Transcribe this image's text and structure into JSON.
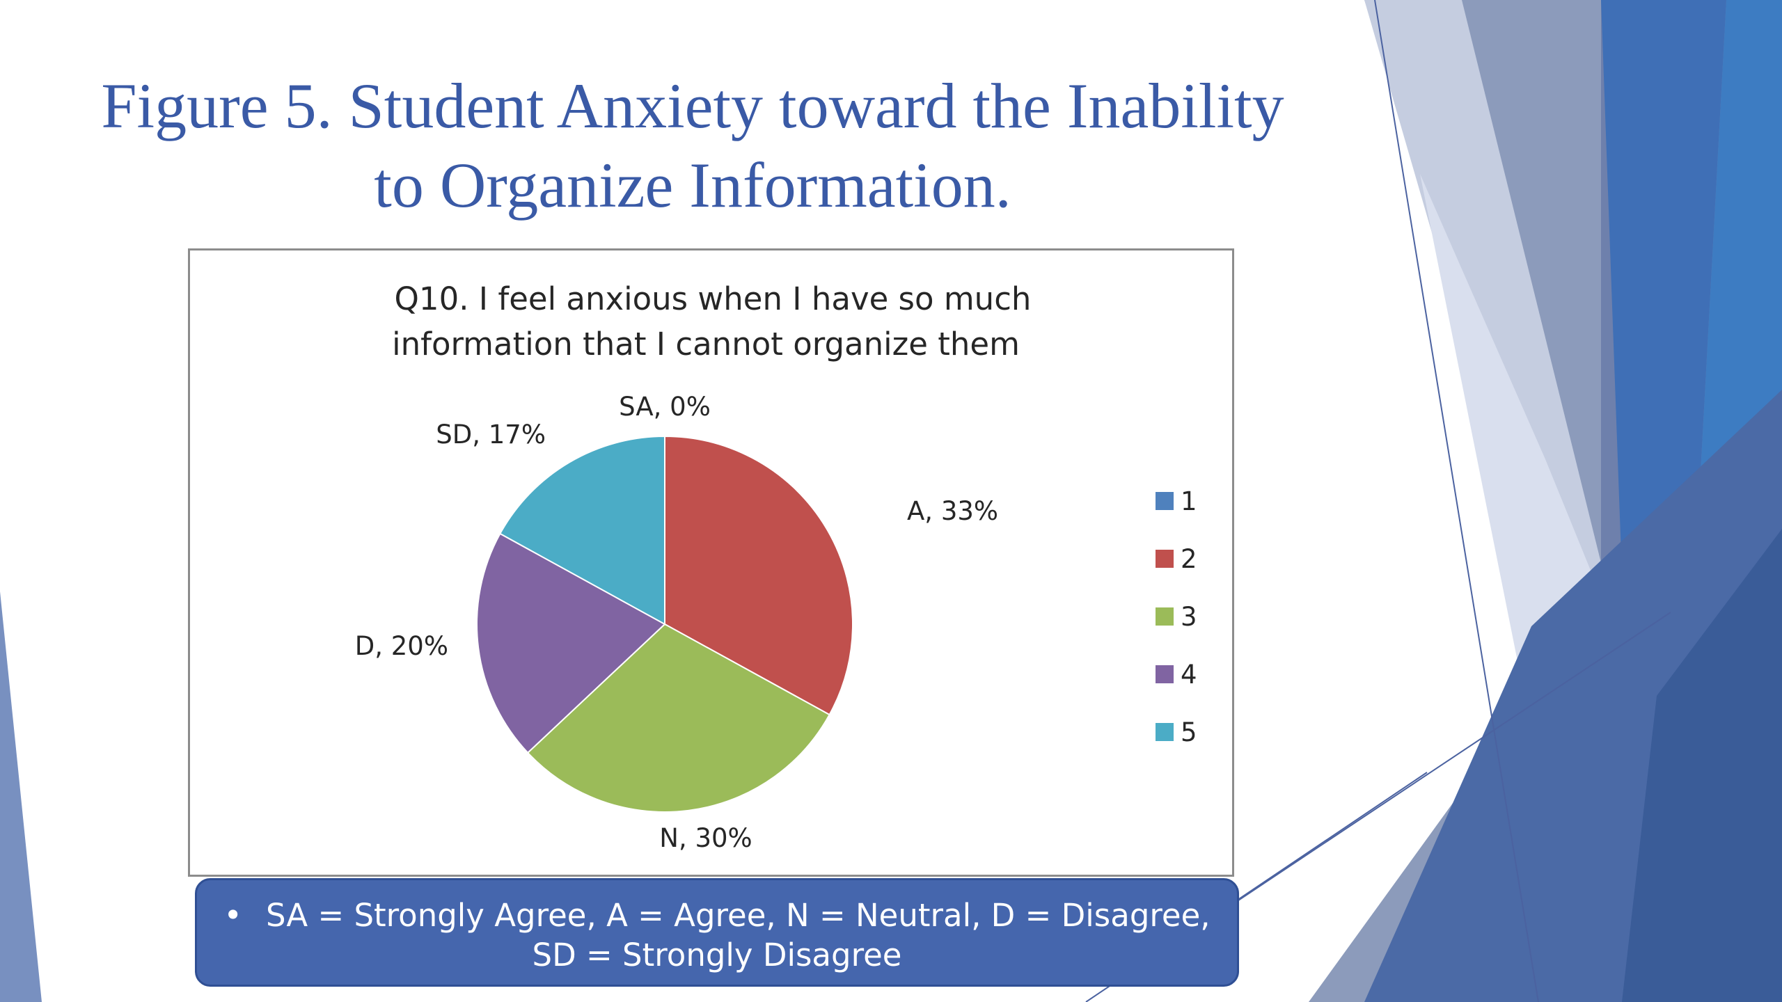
{
  "slide": {
    "title_line1": "Figure 5. Student Anxiety toward the Inability",
    "title_line2": "to Organize Information.",
    "footnote_bullet": "•",
    "footnote_line1": "SA = Strongly Agree, A = Agree, N = Neutral, D = Disagree,",
    "footnote_line2": "SD = Strongly Disagree",
    "colors": {
      "title": "#3a5aa6",
      "footnote_bg": "#4566ad"
    }
  },
  "chart_data": {
    "type": "pie",
    "title": [
      "Q10.  I feel anxious when I have so much",
      "information that I cannot organize them"
    ],
    "slices": [
      {
        "label": "SA, 0%",
        "value": 0,
        "legend": "1",
        "color": "#4f81bd"
      },
      {
        "label": "A, 33%",
        "value": 33,
        "legend": "2",
        "color": "#c0504d"
      },
      {
        "label": "N, 30%",
        "value": 30,
        "legend": "3",
        "color": "#9bbb59"
      },
      {
        "label": "D, 20%",
        "value": 20,
        "legend": "4",
        "color": "#8064a2"
      },
      {
        "label": "SD, 17%",
        "value": 17,
        "legend": "5",
        "color": "#4bacc6"
      }
    ],
    "legend_position": "right"
  }
}
